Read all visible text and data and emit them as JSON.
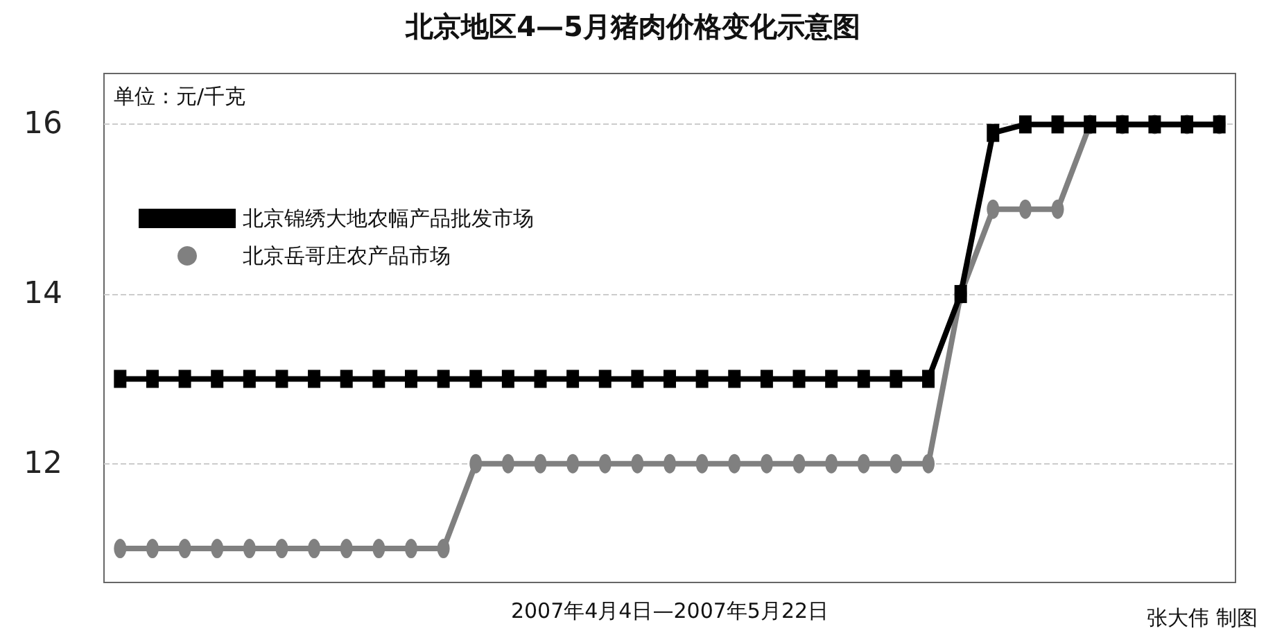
{
  "chart_data": {
    "type": "line",
    "title": "北京地区4—5月猪肉价格变化示意图",
    "xlabel": "2007年4月4日—2007年5月22日",
    "annotations": [
      "单位：元/千克",
      "张大伟 制图"
    ],
    "categories": [
      null,
      null,
      null,
      null,
      null,
      null,
      null,
      null,
      null,
      null,
      null,
      null,
      null,
      null,
      null,
      null,
      null,
      null,
      null,
      null,
      null,
      null,
      null,
      null,
      null,
      null,
      null,
      null,
      null,
      null,
      null,
      null,
      null,
      null,
      null
    ],
    "series": [
      {
        "name": "北京锦绣大地农幅产品批发市场",
        "color": "#000000",
        "marker": "square",
        "values": [
          13,
          13,
          13,
          13,
          13,
          13,
          13,
          13,
          13,
          13,
          13,
          13,
          13,
          13,
          13,
          13,
          13,
          13,
          13,
          13,
          13,
          13,
          13,
          13,
          13,
          13,
          14,
          15.9,
          16,
          16,
          16,
          16,
          16,
          16,
          16
        ]
      },
      {
        "name": "北京岳哥庄农产品市场",
        "color": "#808080",
        "marker": "circle",
        "values": [
          11,
          11,
          11,
          11,
          11,
          11,
          11,
          11,
          11,
          11,
          11,
          12,
          12,
          12,
          12,
          12,
          12,
          12,
          12,
          12,
          12,
          12,
          12,
          12,
          12,
          12,
          14,
          15,
          15,
          15,
          16,
          16,
          16,
          16,
          16
        ]
      }
    ],
    "ylim": [
      10.6,
      16.6
    ],
    "yticks": [
      12,
      14,
      16
    ],
    "grid": "y",
    "legend": "top left"
  }
}
